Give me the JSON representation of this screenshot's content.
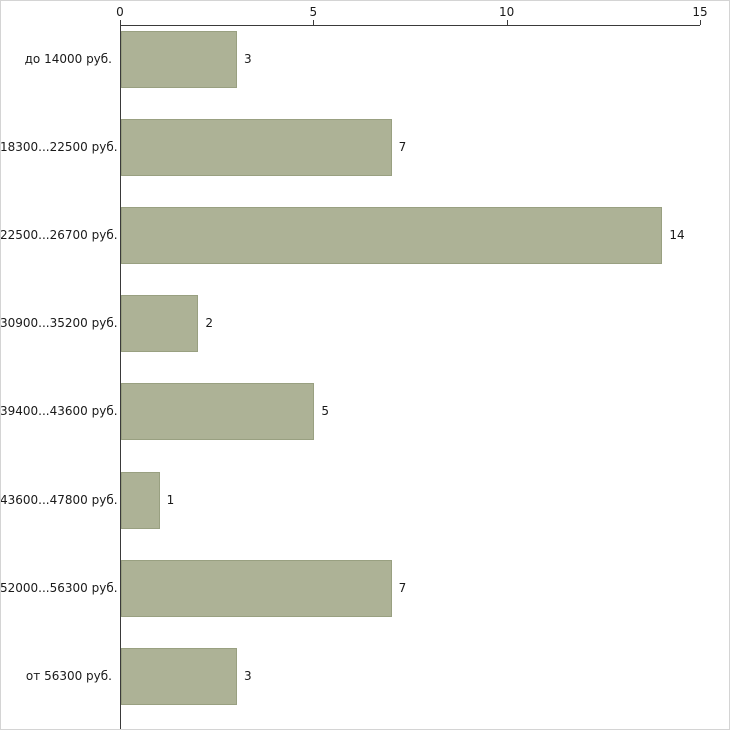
{
  "chart_data": {
    "type": "bar",
    "orientation": "horizontal",
    "title": "",
    "xlabel": "",
    "ylabel": "",
    "categories": [
      "до 14000 руб.",
      "18300...22500 руб.",
      "22500...26700 руб.",
      "30900...35200 руб.",
      "39400...43600 руб.",
      "43600...47800 руб.",
      "52000...56300 руб.",
      "от 56300 руб."
    ],
    "values": [
      3,
      7,
      14,
      2,
      5,
      1,
      7,
      3
    ],
    "value_labels": [
      "3",
      "7",
      "14",
      "2",
      "5",
      "1",
      "7",
      "3"
    ],
    "xlim": [
      0,
      15
    ],
    "x_ticks": [
      0,
      5,
      10,
      15
    ],
    "x_tick_labels": [
      "0",
      "5",
      "10",
      "15"
    ],
    "grid": false,
    "legend": false,
    "bar_color": "#adb296",
    "bar_border_color": "#99a081",
    "axis_color": "#3a3a3a",
    "text_color": "#1a1a1a",
    "background_color": "#ffffff"
  }
}
